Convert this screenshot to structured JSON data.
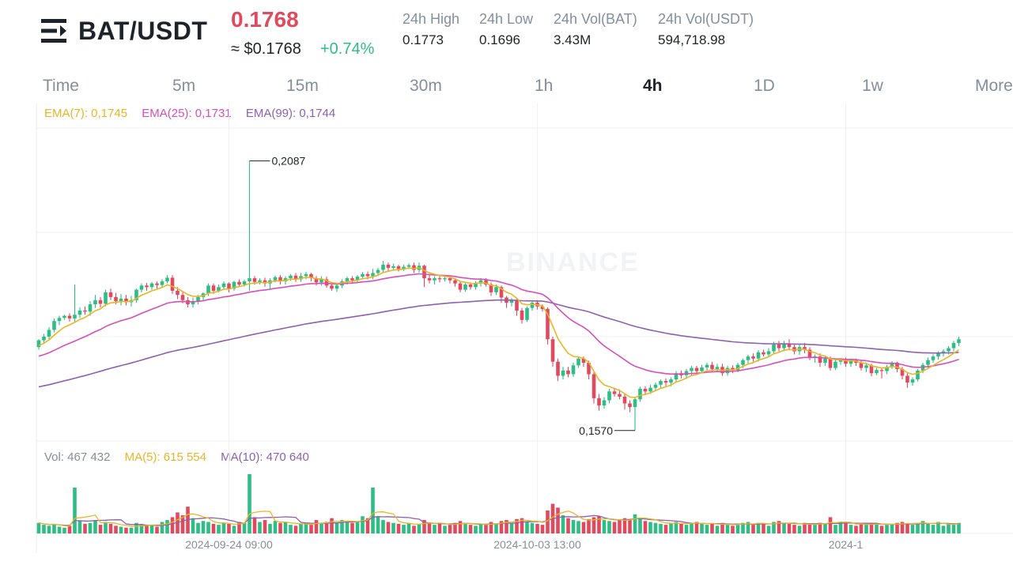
{
  "header": {
    "pair": "BAT/USDT",
    "last_price": "0.1768",
    "usd_price": "≈ $0.1768",
    "change": "+0.74%",
    "stats": [
      {
        "label": "24h High",
        "value": "0.1773"
      },
      {
        "label": "24h Low",
        "value": "0.1696"
      },
      {
        "label": "24h Vol(BAT)",
        "value": "3.43M"
      },
      {
        "label": "24h Vol(USDT)",
        "value": "594,718.98"
      }
    ]
  },
  "tabs": [
    "Time",
    "5m",
    "15m",
    "30m",
    "1h",
    "4h",
    "1D",
    "1w",
    "More"
  ],
  "active_tab": "4h",
  "legend": {
    "ema7": "EMA(7): 0,1745",
    "ema25": "EMA(25): 0,1731",
    "ema99": "EMA(99): 0,1744",
    "vol": "Vol: 467 432",
    "ma5": "MA(5): 615 554",
    "ma10": "MA(10): 470 640"
  },
  "colors": {
    "up": "#2ebd85",
    "down": "#e04a5f",
    "ema7": "#e8b527",
    "ema25": "#d84fb5",
    "ema99": "#8e60b0"
  },
  "watermark": "BINANCE",
  "chart_data": {
    "type": "candlestick",
    "ylim": [
      0.155,
      0.215
    ],
    "max_label": "0,2087",
    "min_label": "0,1570",
    "x_ticks": [
      {
        "index": 37,
        "label": "2024-09-24 09:00"
      },
      {
        "index": 97,
        "label": "2024-10-03 13:00"
      },
      {
        "index": 157,
        "label": "2024-1"
      }
    ],
    "candles": [
      [
        0.173,
        0.1743,
        0.1725,
        0.1745
      ],
      [
        0.1743,
        0.175,
        0.1736,
        0.1755
      ],
      [
        0.175,
        0.1763,
        0.1745,
        0.1768
      ],
      [
        0.1763,
        0.178,
        0.1758,
        0.1785
      ],
      [
        0.178,
        0.1786,
        0.1772,
        0.179
      ],
      [
        0.1786,
        0.179,
        0.1782,
        0.1792
      ],
      [
        0.179,
        0.1785,
        0.1779,
        0.1795
      ],
      [
        0.1785,
        0.1792,
        0.1778,
        0.185
      ],
      [
        0.1792,
        0.18,
        0.1786,
        0.1806
      ],
      [
        0.18,
        0.1798,
        0.1792,
        0.1808
      ],
      [
        0.1798,
        0.1812,
        0.179,
        0.1818
      ],
      [
        0.1812,
        0.182,
        0.1805,
        0.183
      ],
      [
        0.182,
        0.1813,
        0.1806,
        0.1826
      ],
      [
        0.1813,
        0.1835,
        0.1808,
        0.184
      ],
      [
        0.1835,
        0.1826,
        0.182,
        0.1842
      ],
      [
        0.1826,
        0.1818,
        0.1812,
        0.1834
      ],
      [
        0.1818,
        0.1823,
        0.181,
        0.1832
      ],
      [
        0.1823,
        0.1816,
        0.181,
        0.183
      ],
      [
        0.1816,
        0.182,
        0.1808,
        0.1828
      ],
      [
        0.182,
        0.184,
        0.1815,
        0.1842
      ],
      [
        0.184,
        0.1848,
        0.1835,
        0.1852
      ],
      [
        0.1848,
        0.1845,
        0.1838,
        0.1853
      ],
      [
        0.1845,
        0.1852,
        0.184,
        0.1855
      ],
      [
        0.1852,
        0.1849,
        0.1842,
        0.1856
      ],
      [
        0.1849,
        0.1856,
        0.1845,
        0.186
      ],
      [
        0.1856,
        0.1863,
        0.1852,
        0.1868
      ],
      [
        0.1863,
        0.1838,
        0.1832,
        0.1868
      ],
      [
        0.1838,
        0.183,
        0.1822,
        0.1845
      ],
      [
        0.183,
        0.182,
        0.1814,
        0.1836
      ],
      [
        0.182,
        0.1812,
        0.1806,
        0.1826
      ],
      [
        0.1812,
        0.1818,
        0.1806,
        0.1825
      ],
      [
        0.1818,
        0.1826,
        0.1812,
        0.183
      ],
      [
        0.1826,
        0.1833,
        0.182,
        0.1835
      ],
      [
        0.1833,
        0.1848,
        0.1828,
        0.1852
      ],
      [
        0.1848,
        0.1838,
        0.1832,
        0.1852
      ],
      [
        0.1838,
        0.1845,
        0.1835,
        0.185
      ],
      [
        0.1845,
        0.1852,
        0.184,
        0.1856
      ],
      [
        0.1852,
        0.1842,
        0.1835,
        0.1854
      ],
      [
        0.1842,
        0.1855,
        0.1838,
        0.1857
      ],
      [
        0.1855,
        0.185,
        0.1845,
        0.186
      ],
      [
        0.185,
        0.1856,
        0.1846,
        0.1859
      ],
      [
        0.1856,
        0.1862,
        0.1838,
        0.2087
      ],
      [
        0.1862,
        0.1855,
        0.185,
        0.1866
      ],
      [
        0.1855,
        0.1858,
        0.185,
        0.1862
      ],
      [
        0.1858,
        0.1852,
        0.1846,
        0.1863
      ],
      [
        0.1852,
        0.1858,
        0.184,
        0.1862
      ],
      [
        0.1858,
        0.1864,
        0.1854,
        0.1867
      ],
      [
        0.1864,
        0.1856,
        0.185,
        0.1868
      ],
      [
        0.1856,
        0.1862,
        0.185,
        0.1866
      ],
      [
        0.1862,
        0.1867,
        0.1857,
        0.187
      ],
      [
        0.1867,
        0.186,
        0.1855,
        0.1872
      ],
      [
        0.186,
        0.1866,
        0.1855,
        0.1872
      ],
      [
        0.1866,
        0.187,
        0.186,
        0.1874
      ],
      [
        0.187,
        0.1862,
        0.1856,
        0.1872
      ],
      [
        0.1862,
        0.1854,
        0.1848,
        0.1866
      ],
      [
        0.1854,
        0.186,
        0.1848,
        0.1866
      ],
      [
        0.186,
        0.1848,
        0.1844,
        0.1865
      ],
      [
        0.1848,
        0.1842,
        0.1838,
        0.1852
      ],
      [
        0.1842,
        0.1848,
        0.1836,
        0.1852
      ],
      [
        0.1848,
        0.1856,
        0.1843,
        0.186
      ],
      [
        0.1856,
        0.1862,
        0.185,
        0.1865
      ],
      [
        0.1862,
        0.1858,
        0.1852,
        0.1866
      ],
      [
        0.1858,
        0.1865,
        0.1853,
        0.1868
      ],
      [
        0.1865,
        0.187,
        0.186,
        0.1874
      ],
      [
        0.187,
        0.1866,
        0.186,
        0.1875
      ],
      [
        0.1866,
        0.1872,
        0.186,
        0.188
      ],
      [
        0.1872,
        0.1878,
        0.1866,
        0.1882
      ],
      [
        0.1878,
        0.1888,
        0.1872,
        0.1895
      ],
      [
        0.1888,
        0.1882,
        0.1875,
        0.1892
      ],
      [
        0.1882,
        0.1885,
        0.1878,
        0.189
      ],
      [
        0.1885,
        0.188,
        0.1875,
        0.1888
      ],
      [
        0.188,
        0.1884,
        0.1876,
        0.1888
      ],
      [
        0.1884,
        0.1887,
        0.188,
        0.189
      ],
      [
        0.1887,
        0.1878,
        0.1872,
        0.1892
      ],
      [
        0.1878,
        0.1886,
        0.1873,
        0.1892
      ],
      [
        0.1886,
        0.1862,
        0.1845,
        0.1888
      ],
      [
        0.1862,
        0.1858,
        0.1852,
        0.1868
      ],
      [
        0.1858,
        0.1862,
        0.185,
        0.1866
      ],
      [
        0.1862,
        0.186,
        0.1854,
        0.1866
      ],
      [
        0.186,
        0.1862,
        0.1856,
        0.1866
      ],
      [
        0.1862,
        0.1858,
        0.1852,
        0.1864
      ],
      [
        0.1858,
        0.1852,
        0.1846,
        0.1862
      ],
      [
        0.1852,
        0.184,
        0.1835,
        0.1856
      ],
      [
        0.184,
        0.185,
        0.1836,
        0.1854
      ],
      [
        0.185,
        0.1845,
        0.184,
        0.1854
      ],
      [
        0.1845,
        0.1852,
        0.184,
        0.1856
      ],
      [
        0.1852,
        0.1858,
        0.1846,
        0.1862
      ],
      [
        0.1858,
        0.185,
        0.1846,
        0.1862
      ],
      [
        0.185,
        0.1835,
        0.1828,
        0.1854
      ],
      [
        0.1835,
        0.1845,
        0.183,
        0.185
      ],
      [
        0.1845,
        0.1825,
        0.1815,
        0.1848
      ],
      [
        0.1825,
        0.1815,
        0.1805,
        0.1828
      ],
      [
        0.1815,
        0.182,
        0.1808,
        0.1824
      ],
      [
        0.182,
        0.18,
        0.179,
        0.1822
      ],
      [
        0.18,
        0.1782,
        0.1775,
        0.1805
      ],
      [
        0.1782,
        0.1805,
        0.1778,
        0.1808
      ],
      [
        0.1805,
        0.1815,
        0.18,
        0.1818
      ],
      [
        0.1815,
        0.1808,
        0.1802,
        0.182
      ],
      [
        0.1808,
        0.1803,
        0.1798,
        0.1812
      ],
      [
        0.1803,
        0.1745,
        0.1735,
        0.1806
      ],
      [
        0.1745,
        0.1702,
        0.1692,
        0.175
      ],
      [
        0.1702,
        0.1675,
        0.1665,
        0.1708
      ],
      [
        0.1675,
        0.1685,
        0.1668,
        0.1692
      ],
      [
        0.1685,
        0.1678,
        0.1672,
        0.1692
      ],
      [
        0.1678,
        0.1695,
        0.1673,
        0.17
      ],
      [
        0.1695,
        0.1708,
        0.169,
        0.1712
      ],
      [
        0.1708,
        0.17,
        0.1692,
        0.1712
      ],
      [
        0.17,
        0.1678,
        0.1668,
        0.1704
      ],
      [
        0.1678,
        0.1632,
        0.1622,
        0.1682
      ],
      [
        0.1632,
        0.1618,
        0.1608,
        0.164
      ],
      [
        0.1618,
        0.1628,
        0.1612,
        0.1634
      ],
      [
        0.1628,
        0.1645,
        0.1622,
        0.165
      ],
      [
        0.1645,
        0.164,
        0.1635,
        0.1652
      ],
      [
        0.164,
        0.1635,
        0.163,
        0.1648
      ],
      [
        0.1635,
        0.1622,
        0.161,
        0.164
      ],
      [
        0.1622,
        0.1615,
        0.1605,
        0.1628
      ],
      [
        0.1615,
        0.163,
        0.157,
        0.1635
      ],
      [
        0.163,
        0.165,
        0.1625,
        0.1654
      ],
      [
        0.165,
        0.1645,
        0.164,
        0.1655
      ],
      [
        0.1645,
        0.1652,
        0.164,
        0.1658
      ],
      [
        0.1652,
        0.1658,
        0.1646,
        0.1662
      ],
      [
        0.1658,
        0.1665,
        0.1652,
        0.1668
      ],
      [
        0.1665,
        0.1662,
        0.1655,
        0.167
      ],
      [
        0.1662,
        0.1668,
        0.1655,
        0.1672
      ],
      [
        0.1668,
        0.168,
        0.1662,
        0.1684
      ],
      [
        0.168,
        0.1676,
        0.167,
        0.1685
      ],
      [
        0.1676,
        0.1684,
        0.167,
        0.1688
      ],
      [
        0.1684,
        0.169,
        0.1676,
        0.1694
      ],
      [
        0.169,
        0.1684,
        0.1678,
        0.1694
      ],
      [
        0.1684,
        0.1691,
        0.168,
        0.1696
      ],
      [
        0.1691,
        0.1696,
        0.1686,
        0.17
      ],
      [
        0.1696,
        0.1688,
        0.1683,
        0.1702
      ],
      [
        0.1688,
        0.1692,
        0.1682,
        0.1698
      ],
      [
        0.1692,
        0.168,
        0.1675,
        0.1698
      ],
      [
        0.168,
        0.169,
        0.1675,
        0.1694
      ],
      [
        0.169,
        0.1686,
        0.168,
        0.1695
      ],
      [
        0.1686,
        0.1696,
        0.1682,
        0.17
      ],
      [
        0.1696,
        0.1705,
        0.169,
        0.1708
      ],
      [
        0.1705,
        0.1712,
        0.1698,
        0.1715
      ],
      [
        0.1712,
        0.1708,
        0.1702,
        0.1718
      ],
      [
        0.1708,
        0.172,
        0.1702,
        0.1724
      ],
      [
        0.172,
        0.1716,
        0.1712,
        0.1725
      ],
      [
        0.1716,
        0.1722,
        0.1712,
        0.1728
      ],
      [
        0.1722,
        0.1735,
        0.1718,
        0.174
      ],
      [
        0.1735,
        0.1728,
        0.1722,
        0.1742
      ],
      [
        0.1728,
        0.1736,
        0.1722,
        0.1742
      ],
      [
        0.1736,
        0.173,
        0.1725,
        0.1745
      ],
      [
        0.173,
        0.1722,
        0.1716,
        0.1735
      ],
      [
        0.1722,
        0.173,
        0.1715,
        0.1736
      ],
      [
        0.173,
        0.1725,
        0.1718,
        0.1738
      ],
      [
        0.1725,
        0.171,
        0.1705,
        0.173
      ],
      [
        0.171,
        0.1712,
        0.17,
        0.1716
      ],
      [
        0.1712,
        0.17,
        0.1692,
        0.1718
      ],
      [
        0.17,
        0.1708,
        0.1694,
        0.1712
      ],
      [
        0.1708,
        0.169,
        0.1685,
        0.1712
      ],
      [
        0.169,
        0.1702,
        0.1686,
        0.1706
      ],
      [
        0.1702,
        0.1705,
        0.1696,
        0.1708
      ],
      [
        0.1705,
        0.1698,
        0.1692,
        0.171
      ],
      [
        0.1698,
        0.1705,
        0.1692,
        0.1708
      ],
      [
        0.1705,
        0.17,
        0.1694,
        0.1708
      ],
      [
        0.17,
        0.169,
        0.1685,
        0.1704
      ],
      [
        0.169,
        0.1695,
        0.1682,
        0.17
      ],
      [
        0.1695,
        0.168,
        0.1674,
        0.1698
      ],
      [
        0.168,
        0.1686,
        0.1676,
        0.169
      ],
      [
        0.1686,
        0.1684,
        0.167,
        0.169
      ],
      [
        0.1684,
        0.1692,
        0.1678,
        0.1696
      ],
      [
        0.1692,
        0.17,
        0.1688,
        0.1703
      ],
      [
        0.17,
        0.1688,
        0.1682,
        0.1702
      ],
      [
        0.1688,
        0.1675,
        0.1668,
        0.1692
      ],
      [
        0.1675,
        0.1662,
        0.1652,
        0.168
      ],
      [
        0.1662,
        0.1668,
        0.1656,
        0.1672
      ],
      [
        0.1668,
        0.1685,
        0.1664,
        0.1688
      ],
      [
        0.1685,
        0.1696,
        0.168,
        0.17
      ],
      [
        0.1696,
        0.1705,
        0.169,
        0.171
      ],
      [
        0.1705,
        0.1712,
        0.17,
        0.1716
      ],
      [
        0.1712,
        0.1718,
        0.1706,
        0.1722
      ],
      [
        0.1718,
        0.1722,
        0.1712,
        0.1726
      ],
      [
        0.1722,
        0.1728,
        0.1716,
        0.1732
      ],
      [
        0.1728,
        0.1738,
        0.1722,
        0.1742
      ],
      [
        0.1738,
        0.1745,
        0.1732,
        0.175
      ]
    ],
    "volume": [
      0.55,
      0.45,
      0.4,
      0.5,
      0.35,
      0.3,
      0.4,
      2.4,
      0.65,
      0.5,
      0.55,
      0.7,
      0.45,
      0.6,
      0.5,
      0.4,
      0.35,
      0.3,
      0.3,
      0.55,
      0.5,
      0.4,
      0.45,
      0.35,
      0.6,
      0.7,
      0.85,
      1.1,
      0.95,
      1.4,
      0.8,
      0.55,
      0.65,
      0.6,
      0.5,
      0.45,
      0.55,
      0.5,
      0.4,
      0.6,
      0.55,
      3.1,
      0.85,
      0.6,
      0.7,
      0.5,
      0.65,
      0.55,
      0.6,
      0.45,
      0.4,
      0.5,
      0.55,
      0.45,
      0.7,
      0.5,
      0.6,
      0.8,
      0.55,
      0.7,
      0.6,
      0.55,
      0.65,
      0.9,
      0.8,
      2.4,
      0.85,
      0.7,
      0.6,
      0.55,
      0.5,
      0.45,
      0.55,
      0.4,
      0.5,
      0.7,
      0.55,
      0.45,
      0.5,
      0.4,
      0.45,
      0.55,
      0.65,
      0.5,
      0.45,
      0.4,
      0.5,
      0.45,
      0.6,
      0.5,
      0.65,
      0.7,
      0.55,
      0.75,
      0.8,
      0.6,
      0.55,
      0.5,
      0.45,
      1.2,
      1.55,
      1.35,
      0.95,
      0.8,
      0.7,
      0.65,
      0.6,
      0.75,
      0.85,
      0.9,
      0.7,
      0.65,
      0.6,
      0.7,
      0.8,
      0.75,
      1.0,
      0.8,
      0.65,
      0.6,
      0.55,
      0.5,
      0.45,
      0.55,
      0.6,
      0.5,
      0.45,
      0.55,
      0.6,
      0.5,
      0.45,
      0.5,
      0.4,
      0.55,
      0.45,
      0.4,
      0.5,
      0.55,
      0.6,
      0.45,
      0.55,
      0.5,
      0.4,
      0.6,
      0.65,
      0.55,
      0.5,
      0.45,
      0.4,
      0.55,
      0.5,
      0.45,
      0.55,
      0.5,
      0.85,
      0.45,
      0.6,
      0.55,
      0.45,
      0.4,
      0.5,
      0.45,
      0.55,
      0.5,
      0.4,
      0.45,
      0.5,
      0.55,
      0.6,
      0.5,
      0.45,
      0.55,
      0.65,
      0.5,
      0.45,
      0.6,
      0.4,
      0.5,
      0.45,
      0.55
    ]
  }
}
